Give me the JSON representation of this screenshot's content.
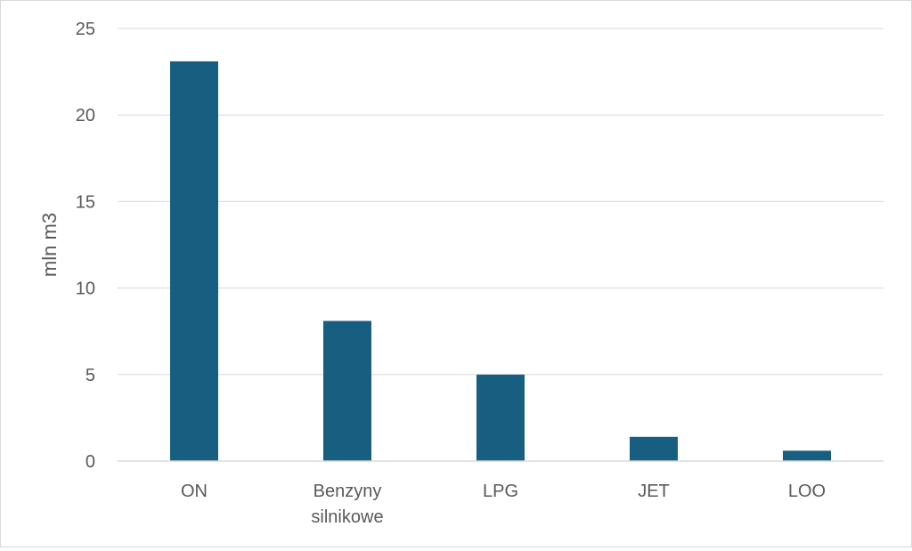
{
  "chart_data": {
    "type": "bar",
    "title": "",
    "xlabel": "",
    "ylabel": "mln m3",
    "categories": [
      [
        "ON"
      ],
      [
        "Benzyny",
        "silnikowe"
      ],
      [
        "LPG"
      ],
      [
        "JET"
      ],
      [
        "LOO"
      ]
    ],
    "values": [
      23.1,
      8.1,
      5.0,
      1.4,
      0.6
    ],
    "ylim": [
      0,
      25
    ],
    "yticks": [
      0,
      5,
      10,
      15,
      20,
      25
    ],
    "grid": true,
    "legend": "none",
    "colors": {
      "bar": "#175e80",
      "grid": "#d9d9d9",
      "axis": "#d9d9d9",
      "text": "#595959"
    }
  }
}
